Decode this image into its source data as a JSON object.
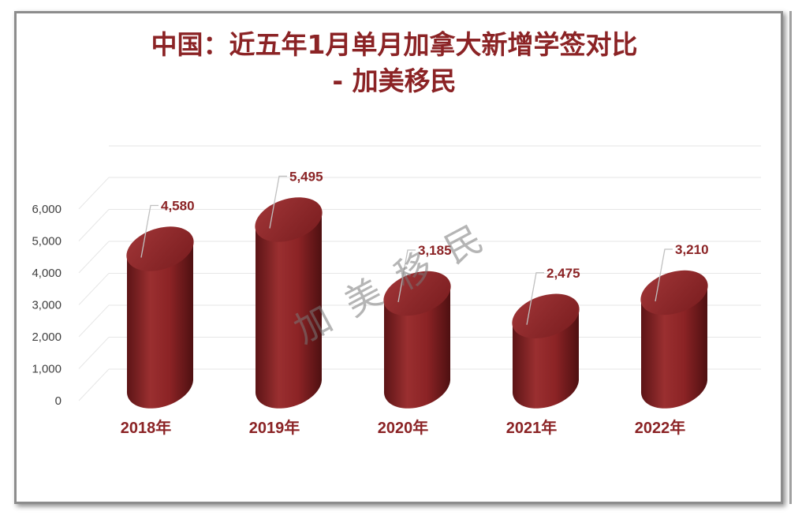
{
  "chart_data": {
    "type": "bar",
    "title_lines": [
      "中国：近五年1月单月加拿大新增学签对比",
      "- 加美移民"
    ],
    "categories": [
      "2018年",
      "2019年",
      "2020年",
      "2021年",
      "2022年"
    ],
    "values": [
      4580,
      5495,
      3185,
      2475,
      3210
    ],
    "value_labels": [
      "4,580",
      "5,495",
      "3,185",
      "2,475",
      "3,210"
    ],
    "y_ticks": [
      "0",
      "1,000",
      "2,000",
      "3,000",
      "4,000",
      "5,000",
      "6,000"
    ],
    "ylim": [
      0,
      6000
    ],
    "grid": true,
    "bar_color": "#8b2325",
    "watermark": "加美移民"
  }
}
